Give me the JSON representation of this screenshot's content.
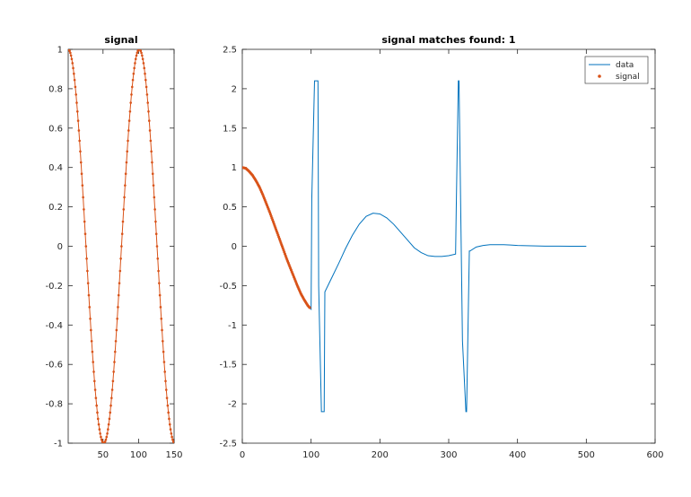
{
  "figure": {
    "background": "#ffffff"
  },
  "chart_data": [
    {
      "type": "scatter",
      "title": "signal",
      "xlabel": "",
      "ylabel": "",
      "xlim": [
        1,
        150
      ],
      "ylim": [
        -1,
        1
      ],
      "x_ticks": [
        50,
        100,
        150
      ],
      "x_tick_labels": [
        "50",
        "100",
        "150"
      ],
      "y_ticks": [
        -1,
        -0.8,
        -0.6,
        -0.4,
        -0.2,
        0,
        0.2,
        0.4,
        0.6,
        0.8,
        1
      ],
      "y_tick_labels": [
        "-1",
        "-0.8",
        "-0.6",
        "-0.4",
        "-0.2",
        "0",
        "0.2",
        "0.4",
        "0.6",
        "0.8",
        "1"
      ],
      "grid": false,
      "legend": null,
      "series": [
        {
          "style": "line-with-dot-markers",
          "color": "#d95319",
          "description": "cosine with period 100 samples, x from 1 to 150",
          "x": [
            1,
            5,
            10,
            15,
            20,
            25,
            30,
            35,
            40,
            45,
            50,
            51,
            55,
            60,
            65,
            70,
            75,
            80,
            85,
            90,
            95,
            100,
            101,
            105,
            110,
            115,
            120,
            125,
            130,
            135,
            140,
            145,
            150
          ],
          "y": [
            1,
            0.97,
            0.84,
            0.63,
            0.35,
            0.04,
            -0.27,
            -0.56,
            -0.79,
            -0.94,
            -1,
            -1,
            -0.97,
            -0.84,
            -0.63,
            -0.35,
            -0.04,
            0.27,
            0.56,
            0.79,
            0.94,
            1,
            1,
            0.97,
            0.84,
            0.63,
            0.35,
            0.04,
            -0.27,
            -0.56,
            -0.79,
            -0.94,
            -1
          ]
        }
      ]
    },
    {
      "type": "line",
      "title": "signal matches found: 1",
      "xlabel": "",
      "ylabel": "",
      "xlim": [
        0,
        600
      ],
      "ylim": [
        -2.5,
        2.5
      ],
      "x_ticks": [
        0,
        100,
        200,
        300,
        400,
        500,
        600
      ],
      "x_tick_labels": [
        "0",
        "100",
        "200",
        "300",
        "400",
        "500",
        "600"
      ],
      "y_ticks": [
        -2.5,
        -2,
        -1.5,
        -1,
        -0.5,
        0,
        0.5,
        1,
        1.5,
        2,
        2.5
      ],
      "y_tick_labels": [
        "-2.5",
        "-2",
        "-1.5",
        "-1",
        "-0.5",
        "0",
        "0.5",
        "1",
        "1.5",
        "2",
        "2.5"
      ],
      "grid": false,
      "legend": "top-right",
      "series": [
        {
          "name": "data",
          "style": "line",
          "color": "#0072bd",
          "x": [
            0,
            10,
            20,
            30,
            40,
            50,
            60,
            70,
            80,
            90,
            98,
            100,
            101,
            105,
            110,
            111,
            115,
            119,
            120,
            130,
            140,
            150,
            160,
            170,
            180,
            190,
            200,
            210,
            220,
            230,
            240,
            250,
            260,
            270,
            280,
            290,
            300,
            310,
            311,
            314,
            315,
            320,
            325,
            326,
            330,
            331,
            340,
            350,
            360,
            370,
            380,
            390,
            400,
            420,
            440,
            460,
            480,
            500
          ],
          "y": [
            1,
            0.95,
            0.83,
            0.65,
            0.43,
            0.19,
            -0.05,
            -0.28,
            -0.5,
            -0.68,
            -0.78,
            -0.8,
            0.6,
            2.1,
            2.1,
            -0.5,
            -2.1,
            -2.1,
            -0.58,
            -0.4,
            -0.22,
            -0.03,
            0.14,
            0.28,
            0.38,
            0.42,
            0.41,
            0.36,
            0.28,
            0.18,
            0.08,
            -0.02,
            -0.08,
            -0.12,
            -0.13,
            -0.13,
            -0.12,
            -0.1,
            0.5,
            2.1,
            2.1,
            -1.2,
            -2.1,
            -2.1,
            -0.06,
            -0.06,
            -0.01,
            0.01,
            0.02,
            0.02,
            0.02,
            0.015,
            0.01,
            0.005,
            0.002,
            0.001,
            0.0,
            0.0
          ]
        },
        {
          "name": "signal",
          "style": "dot-markers",
          "color": "#d95319",
          "description": "first half period of the template overlaid at the match location, x from 0 to 98",
          "x": [
            0,
            5,
            10,
            15,
            20,
            25,
            30,
            35,
            40,
            45,
            50,
            55,
            60,
            65,
            70,
            75,
            80,
            85,
            90,
            95,
            98
          ],
          "y": [
            1,
            0.99,
            0.95,
            0.9,
            0.83,
            0.75,
            0.65,
            0.54,
            0.43,
            0.31,
            0.19,
            0.07,
            -0.05,
            -0.17,
            -0.28,
            -0.39,
            -0.5,
            -0.6,
            -0.68,
            -0.75,
            -0.78
          ]
        }
      ]
    }
  ]
}
